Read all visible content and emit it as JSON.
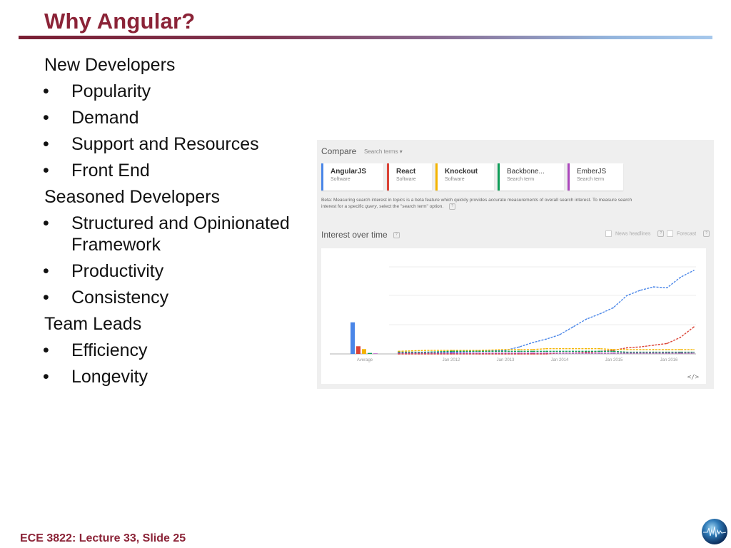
{
  "slide": {
    "title": "Why Angular?",
    "footer": "ECE 3822: Lecture 33, Slide 25",
    "outline": [
      {
        "text": "New Developers",
        "level": 0
      },
      {
        "text": "Popularity",
        "level": 1
      },
      {
        "text": "Demand",
        "level": 1
      },
      {
        "text": "Support and Resources",
        "level": 1
      },
      {
        "text": "Front End",
        "level": 1
      },
      {
        "text": "Seasoned Developers",
        "level": 0
      },
      {
        "text": "Structured and Opinionated Framework",
        "level": 1
      },
      {
        "text": "Productivity",
        "level": 1
      },
      {
        "text": "Consistency",
        "level": 1
      },
      {
        "text": "Team Leads",
        "level": 0
      },
      {
        "text": "Efficiency",
        "level": 1
      },
      {
        "text": "Longevity",
        "level": 1
      }
    ]
  },
  "trends": {
    "compare_label": "Compare",
    "search_terms_label": "Search terms ▾",
    "terms": [
      {
        "name": "AngularJS",
        "type": "Software",
        "color": "#4a86e8"
      },
      {
        "name": "React",
        "type": "Software",
        "color": "#db4437"
      },
      {
        "name": "Knockout",
        "type": "Software",
        "color": "#f4b400"
      },
      {
        "name": "Backbone...",
        "type": "Search term",
        "color": "#0f9d58"
      },
      {
        "name": "EmberJS",
        "type": "Search term",
        "color": "#ab47bc"
      }
    ],
    "beta_prefix": "Beta: Measuring search interest in ",
    "beta_topics": "topics",
    "beta_mid": " is a beta feature which quickly provides accurate measurements of overall search interest. To measure search interest for a specific ",
    "beta_query": "query",
    "beta_suffix": ", select the \"search term\" option.",
    "interest_title": "Interest over time",
    "news_headlines_label": "News headlines",
    "forecast_label": "Forecast",
    "embed_symbol": "</>"
  },
  "chart_data": {
    "type": "line",
    "title": "Interest over time",
    "x_ticks": [
      "Average",
      "Jan 2012",
      "Jan 2013",
      "Jan 2014",
      "Jan 2015",
      "Jan 2016"
    ],
    "ylim": [
      0,
      100
    ],
    "average_bars": [
      {
        "name": "AngularJS",
        "value": 33
      },
      {
        "name": "React",
        "value": 8
      },
      {
        "name": "Knockout",
        "value": 5
      },
      {
        "name": "Backbone...",
        "value": 1
      },
      {
        "name": "EmberJS",
        "value": 0.5
      }
    ],
    "x": [
      2011.0,
      2011.5,
      2012.0,
      2012.5,
      2013.0,
      2013.25,
      2013.5,
      2013.75,
      2014.0,
      2014.25,
      2014.5,
      2014.75,
      2015.0,
      2015.25,
      2015.5,
      2015.75,
      2016.0,
      2016.25,
      2016.5
    ],
    "series": [
      {
        "name": "AngularJS",
        "values": [
          1,
          2,
          2,
          3,
          4,
          8,
          13,
          17,
          22,
          31,
          40,
          46,
          53,
          67,
          73,
          77,
          76,
          88,
          96
        ]
      },
      {
        "name": "React",
        "values": [
          0,
          0,
          0,
          0,
          0,
          0,
          0,
          0,
          1,
          1,
          2,
          3,
          4,
          7,
          8,
          10,
          12,
          19,
          31
        ]
      },
      {
        "name": "Knockout",
        "values": [
          3,
          4,
          4,
          4,
          5,
          5,
          5,
          6,
          6,
          6,
          6,
          6,
          5,
          5,
          5,
          5,
          5,
          5,
          5
        ]
      },
      {
        "name": "Backbone...",
        "values": [
          2,
          2,
          3,
          3,
          3,
          3,
          3,
          3,
          3,
          3,
          3,
          3,
          3,
          2,
          2,
          2,
          2,
          2,
          2
        ]
      },
      {
        "name": "EmberJS",
        "values": [
          1,
          1,
          1,
          1,
          1,
          1,
          1,
          1,
          1,
          1,
          1,
          1,
          1,
          1,
          1,
          1,
          1,
          1,
          1
        ]
      }
    ]
  }
}
